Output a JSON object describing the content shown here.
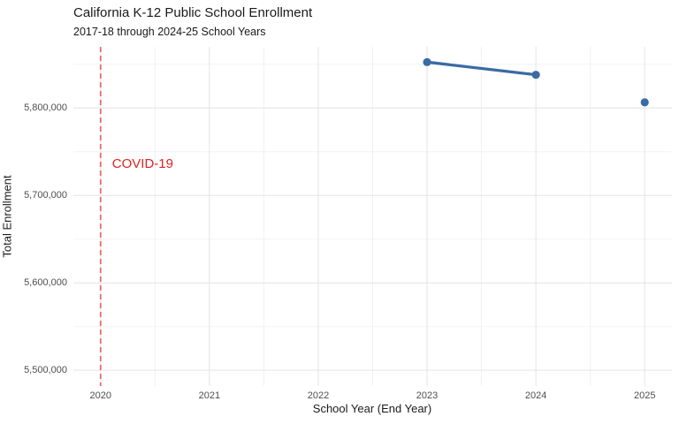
{
  "chart_data": {
    "type": "line",
    "title": "California K-12 Public School Enrollment",
    "subtitle": "2017-18 through 2024-25 School Years",
    "xlabel": "School Year (End Year)",
    "ylabel": "Total Enrollment",
    "x": [
      2023,
      2024,
      2025
    ],
    "values": [
      5852500,
      5838000,
      5806500
    ],
    "series": [
      {
        "name": "Total Enrollment",
        "x": [
          2023,
          2024,
          2025
        ],
        "values": [
          5852500,
          5838000,
          5806500
        ]
      }
    ],
    "connected_segments": [
      [
        0,
        1
      ]
    ],
    "xlim": [
      2019.75,
      2025.25
    ],
    "ylim": [
      5482000,
      5870000
    ],
    "x_ticks": [
      2020,
      2021,
      2022,
      2023,
      2024,
      2025
    ],
    "x_minor_gridlines": [
      2020.5,
      2021.5,
      2022.5,
      2023.5,
      2024.5
    ],
    "y_ticks": [
      5500000,
      5600000,
      5700000,
      5800000
    ],
    "y_tick_labels": [
      "5,500,000",
      "5,600,000",
      "5,700,000",
      "5,800,000"
    ],
    "y_minor_gridlines": [
      5550000,
      5650000,
      5750000,
      5850000
    ],
    "grid": "major-and-minor",
    "legend": "none",
    "vline": {
      "x": 2020,
      "style": "dashed",
      "color": "#e96b6b",
      "width": 1.8
    },
    "annotation": {
      "text": "COVID-19",
      "x": 2020,
      "y": 5736000,
      "color": "#e02222"
    },
    "colors": {
      "background": "#ffffff",
      "point": "#3a6ba4",
      "line": "#3a6ba4",
      "grid_major": "#e4e4e4",
      "grid_minor": "#f2f2f2",
      "tick_label": "#4d4d4d",
      "text": "#1a1a1a"
    }
  }
}
